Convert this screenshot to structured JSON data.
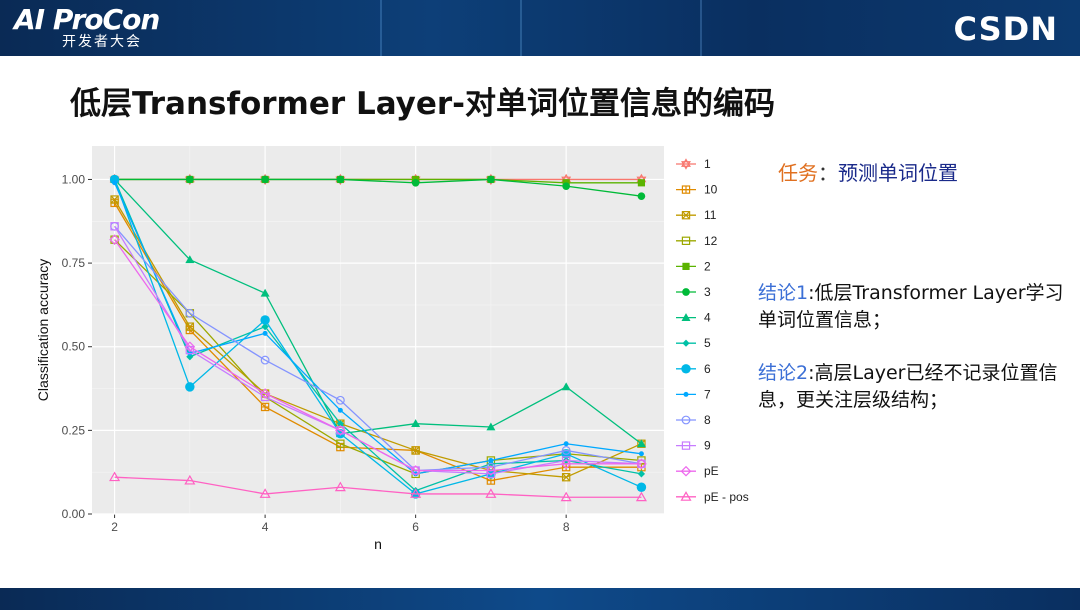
{
  "header": {
    "brand_logo_text": "AI ProCon",
    "brand_logo_subtext": "开发者大会",
    "csdn_logo_text": "CSDN"
  },
  "slide": {
    "title": "低层Transformer Layer-对单词位置信息的编码"
  },
  "annotations": {
    "task_label": "任务",
    "task_colon": "：",
    "task_content": "预测单词位置",
    "conclusion1_label": "结论1",
    "conclusion1_text": ":低层Transformer Layer学习单词位置信息；",
    "conclusion2_label": "结论2",
    "conclusion2_text": ":高层Layer已经不记录位置信息，更关注层级结构；"
  },
  "chart_data": {
    "type": "line",
    "xlabel": "n",
    "ylabel": "Classification accuracy",
    "xlim": [
      1.7,
      9.3
    ],
    "ylim": [
      0,
      1.1
    ],
    "x_ticks": [
      2,
      4,
      6,
      8
    ],
    "y_ticks": [
      0.0,
      0.25,
      0.5,
      0.75,
      1.0
    ],
    "x_tick_labels": [
      "2",
      "4",
      "6",
      "8"
    ],
    "y_tick_labels": [
      "0.00",
      "0.25",
      "0.50",
      "0.75",
      "1.00"
    ],
    "grid": true,
    "background": "#ebebeb",
    "legend_position": "right",
    "x": [
      2,
      3,
      4,
      5,
      6,
      7,
      8,
      9
    ],
    "series": [
      {
        "name": "1",
        "color": "#f8766d",
        "marker": "star",
        "values": [
          1.0,
          1.0,
          1.0,
          1.0,
          1.0,
          1.0,
          1.0,
          1.0
        ]
      },
      {
        "name": "10",
        "color": "#e08b00",
        "marker": "square-plus",
        "values": [
          0.93,
          0.55,
          0.32,
          0.2,
          0.19,
          0.1,
          0.14,
          0.14
        ]
      },
      {
        "name": "11",
        "color": "#c09b00",
        "marker": "square-x",
        "values": [
          0.94,
          0.56,
          0.36,
          0.27,
          0.19,
          0.13,
          0.11,
          0.21
        ]
      },
      {
        "name": "12",
        "color": "#9ca800",
        "marker": "square-open",
        "values": [
          0.82,
          0.6,
          0.35,
          0.21,
          0.12,
          0.16,
          0.18,
          0.16
        ]
      },
      {
        "name": "2",
        "color": "#5bb300",
        "marker": "square",
        "values": [
          1.0,
          1.0,
          1.0,
          1.0,
          1.0,
          1.0,
          0.99,
          0.99
        ]
      },
      {
        "name": "3",
        "color": "#00ba38",
        "marker": "circle",
        "values": [
          1.0,
          1.0,
          1.0,
          1.0,
          0.99,
          1.0,
          0.98,
          0.95
        ]
      },
      {
        "name": "4",
        "color": "#00bf7d",
        "marker": "triangle",
        "values": [
          1.0,
          0.76,
          0.66,
          0.24,
          0.27,
          0.26,
          0.38,
          0.21
        ]
      },
      {
        "name": "5",
        "color": "#00c1a7",
        "marker": "diamond",
        "values": [
          1.0,
          0.47,
          0.56,
          0.27,
          0.07,
          0.15,
          0.16,
          0.12
        ]
      },
      {
        "name": "6",
        "color": "#00b8e7",
        "marker": "circle-big",
        "values": [
          1.0,
          0.38,
          0.58,
          0.24,
          0.06,
          0.12,
          0.18,
          0.08
        ]
      },
      {
        "name": "7",
        "color": "#00a9ff",
        "marker": "dot",
        "values": [
          0.99,
          0.48,
          0.54,
          0.31,
          0.12,
          0.16,
          0.21,
          0.18
        ]
      },
      {
        "name": "8",
        "color": "#8494ff",
        "marker": "circle-open",
        "values": [
          0.86,
          0.6,
          0.46,
          0.34,
          0.13,
          0.14,
          0.19,
          0.15
        ]
      },
      {
        "name": "9",
        "color": "#c77cff",
        "marker": "square-open",
        "values": [
          0.86,
          0.49,
          0.35,
          0.25,
          0.13,
          0.12,
          0.16,
          0.15
        ]
      },
      {
        "name": "pE",
        "color": "#ed68ed",
        "marker": "diamond-open",
        "values": [
          0.82,
          0.5,
          0.36,
          0.25,
          0.13,
          0.13,
          0.15,
          0.15
        ]
      },
      {
        "name": "pE - pos",
        "color": "#ff61c3",
        "marker": "triangle-open",
        "values": [
          0.11,
          0.1,
          0.06,
          0.08,
          0.06,
          0.06,
          0.05,
          0.05
        ]
      }
    ]
  }
}
